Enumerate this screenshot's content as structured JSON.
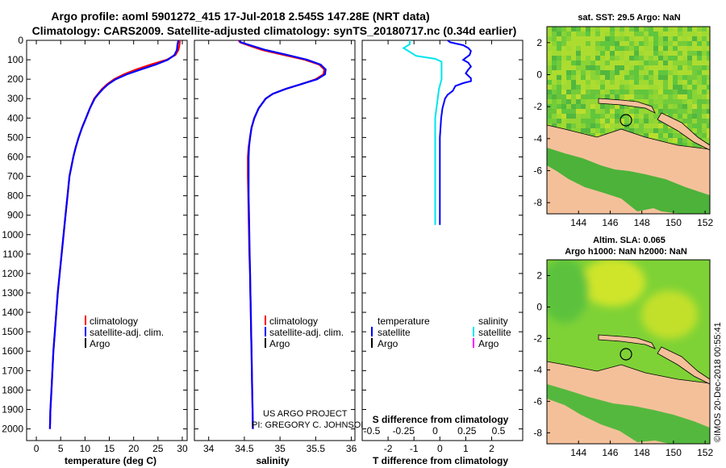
{
  "title": {
    "line1": "Argo profile: aoml 5901272_415 17-Jul-2018 2.545S 147.28E (NRT data)",
    "line2": "Climatology: CARS2009. Satellite-adjusted climatology: synTS_20180717.nc (0.34d earlier)"
  },
  "side_stamp": "©IMOS 20-Dec-2018 00:55:41",
  "colors": {
    "climatology": "#ff0000",
    "satellite": "#0000ff",
    "argo": "#000000",
    "s_satellite": "#00e5ee",
    "s_argo": "#ff00ff",
    "land": "#f4c09a"
  },
  "chart_data": [
    {
      "id": "temperature",
      "type": "line",
      "xlabel": "temperature (deg C)",
      "ylabel": "depth (m)",
      "xlim": [
        -2,
        31
      ],
      "ylim": [
        2060,
        0
      ],
      "xticks": [
        0,
        5,
        10,
        15,
        20,
        25,
        30
      ],
      "yticks": [
        0,
        100,
        200,
        300,
        400,
        500,
        600,
        700,
        800,
        900,
        1000,
        1100,
        1200,
        1300,
        1400,
        1500,
        1600,
        1700,
        1800,
        1900,
        2000
      ],
      "ytick_labels": [
        "0",
        "100",
        "200",
        "300",
        "400",
        "500",
        "600",
        "700",
        "800",
        "900",
        "1000",
        "1100",
        "1200",
        "1300",
        "1400",
        "1500",
        "1600",
        "1700",
        "1800",
        "1900",
        "2000"
      ],
      "legend": {
        "position": "lower-right",
        "entries": [
          "climatology",
          "satellite-adj. clim.",
          "Argo"
        ]
      },
      "series": [
        {
          "name": "climatology",
          "points": [
            [
              29.5,
              0
            ],
            [
              29.4,
              25
            ],
            [
              29.2,
              50
            ],
            [
              28.6,
              75
            ],
            [
              26.8,
              100
            ],
            [
              23.5,
              125
            ],
            [
              20.5,
              150
            ],
            [
              18.0,
              175
            ],
            [
              16.0,
              200
            ],
            [
              14.6,
              225
            ],
            [
              13.5,
              250
            ],
            [
              12.7,
              275
            ],
            [
              11.9,
              300
            ],
            [
              11.0,
              350
            ],
            [
              10.2,
              400
            ],
            [
              9.4,
              450
            ],
            [
              8.7,
              500
            ],
            [
              8.1,
              550
            ],
            [
              7.6,
              600
            ],
            [
              7.2,
              650
            ],
            [
              6.8,
              700
            ],
            [
              6.4,
              800
            ],
            [
              6.0,
              900
            ],
            [
              5.6,
              1000
            ],
            [
              5.2,
              1100
            ],
            [
              4.8,
              1200
            ],
            [
              4.4,
              1300
            ],
            [
              4.1,
              1400
            ],
            [
              3.8,
              1500
            ],
            [
              3.5,
              1600
            ],
            [
              3.3,
              1700
            ],
            [
              3.1,
              1800
            ],
            [
              2.9,
              1900
            ],
            [
              2.8,
              2000
            ]
          ]
        },
        {
          "name": "satellite-adj. clim.",
          "points": [
            [
              29.2,
              0
            ],
            [
              29.0,
              25
            ],
            [
              28.9,
              50
            ],
            [
              28.4,
              75
            ],
            [
              27.0,
              100
            ],
            [
              24.5,
              125
            ],
            [
              21.5,
              150
            ],
            [
              18.6,
              175
            ],
            [
              16.3,
              200
            ],
            [
              14.8,
              225
            ],
            [
              13.7,
              250
            ],
            [
              12.8,
              275
            ],
            [
              12.0,
              300
            ],
            [
              11.0,
              350
            ],
            [
              10.2,
              400
            ],
            [
              9.4,
              450
            ],
            [
              8.7,
              500
            ],
            [
              8.1,
              550
            ],
            [
              7.6,
              600
            ],
            [
              7.2,
              650
            ],
            [
              6.8,
              700
            ],
            [
              6.4,
              800
            ],
            [
              6.0,
              900
            ],
            [
              5.6,
              1000
            ],
            [
              5.2,
              1100
            ],
            [
              4.8,
              1200
            ],
            [
              4.4,
              1300
            ],
            [
              4.1,
              1400
            ],
            [
              3.8,
              1500
            ],
            [
              3.5,
              1600
            ],
            [
              3.3,
              1700
            ],
            [
              3.1,
              1800
            ],
            [
              2.9,
              1900
            ],
            [
              2.8,
              2000
            ]
          ]
        }
      ]
    },
    {
      "id": "salinity",
      "type": "line",
      "xlabel": "salinity",
      "xlim": [
        33.8,
        36.05
      ],
      "ylim": [
        2060,
        0
      ],
      "xticks": [
        34,
        34.5,
        35,
        35.5,
        36
      ],
      "xtick_labels": [
        "34",
        "34.5",
        "35",
        "35.5",
        "36"
      ],
      "legend": {
        "position": "lower-right",
        "entries": [
          "climatology",
          "satellite-adj. clim.",
          "Argo"
        ]
      },
      "series": [
        {
          "name": "climatology",
          "points": [
            [
              34.42,
              0
            ],
            [
              34.44,
              10
            ],
            [
              34.55,
              25
            ],
            [
              34.75,
              50
            ],
            [
              35.05,
              75
            ],
            [
              35.35,
              100
            ],
            [
              35.55,
              125
            ],
            [
              35.62,
              150
            ],
            [
              35.61,
              175
            ],
            [
              35.5,
              200
            ],
            [
              35.3,
              225
            ],
            [
              35.08,
              250
            ],
            [
              34.9,
              275
            ],
            [
              34.8,
              300
            ],
            [
              34.7,
              350
            ],
            [
              34.64,
              400
            ],
            [
              34.6,
              450
            ],
            [
              34.58,
              500
            ],
            [
              34.56,
              550
            ],
            [
              34.55,
              600
            ],
            [
              34.55,
              650
            ],
            [
              34.55,
              700
            ],
            [
              34.555,
              800
            ],
            [
              34.56,
              900
            ],
            [
              34.565,
              1000
            ],
            [
              34.57,
              1100
            ],
            [
              34.58,
              1200
            ],
            [
              34.585,
              1300
            ],
            [
              34.59,
              1400
            ],
            [
              34.595,
              1500
            ],
            [
              34.6,
              1600
            ],
            [
              34.605,
              1700
            ],
            [
              34.61,
              1800
            ],
            [
              34.615,
              1900
            ],
            [
              34.62,
              2000
            ]
          ]
        },
        {
          "name": "satellite-adj. clim.",
          "points": [
            [
              34.43,
              0
            ],
            [
              34.45,
              10
            ],
            [
              34.58,
              25
            ],
            [
              34.8,
              50
            ],
            [
              35.1,
              75
            ],
            [
              35.38,
              100
            ],
            [
              35.57,
              125
            ],
            [
              35.64,
              150
            ],
            [
              35.63,
              175
            ],
            [
              35.52,
              200
            ],
            [
              35.3,
              225
            ],
            [
              35.08,
              250
            ],
            [
              34.9,
              275
            ],
            [
              34.8,
              300
            ],
            [
              34.7,
              350
            ],
            [
              34.64,
              400
            ],
            [
              34.6,
              450
            ],
            [
              34.58,
              500
            ],
            [
              34.565,
              550
            ],
            [
              34.56,
              600
            ],
            [
              34.56,
              650
            ],
            [
              34.56,
              700
            ],
            [
              34.56,
              800
            ],
            [
              34.565,
              900
            ],
            [
              34.57,
              1000
            ],
            [
              34.575,
              1100
            ],
            [
              34.58,
              1200
            ],
            [
              34.585,
              1300
            ],
            [
              34.59,
              1400
            ],
            [
              34.595,
              1500
            ],
            [
              34.6,
              1600
            ],
            [
              34.605,
              1700
            ],
            [
              34.61,
              1800
            ],
            [
              34.615,
              1900
            ],
            [
              34.62,
              2000
            ]
          ]
        }
      ]
    },
    {
      "id": "difference",
      "type": "line",
      "xlabel": "T difference from climatology",
      "xlabel_top": "S difference from climatology",
      "xlim": [
        -3,
        3.2
      ],
      "ylim": [
        2060,
        0
      ],
      "xticks": [
        -2,
        -1,
        0,
        1,
        2
      ],
      "xtick_labels": [
        "-2",
        "-1",
        "0",
        "1",
        "2"
      ],
      "sticks": [
        -0.5,
        -0.25,
        0,
        0.25,
        0.5
      ],
      "stick_labels": [
        "-0.5",
        "-0.25",
        "0",
        "0.25",
        "0.5"
      ],
      "legend": {
        "position": "lower",
        "temperature_header": "temperature",
        "salinity_header": "salinity",
        "entries": [
          "satellite",
          "Argo"
        ]
      },
      "series": [
        {
          "name": "T satellite",
          "points": [
            [
              0.3,
              0
            ],
            [
              0.4,
              10
            ],
            [
              0.9,
              25
            ],
            [
              1.1,
              40
            ],
            [
              1.2,
              55
            ],
            [
              1.15,
              75
            ],
            [
              1.0,
              90
            ],
            [
              0.9,
              100
            ],
            [
              1.1,
              115
            ],
            [
              1.2,
              135
            ],
            [
              1.1,
              150
            ],
            [
              1.0,
              170
            ],
            [
              1.2,
              195
            ],
            [
              1.2,
              210
            ],
            [
              0.9,
              220
            ],
            [
              0.6,
              235
            ],
            [
              0.5,
              260
            ],
            [
              0.3,
              280
            ],
            [
              0.2,
              300
            ],
            [
              0.1,
              350
            ],
            [
              0.05,
              400
            ],
            [
              0.0,
              500
            ],
            [
              0.0,
              600
            ],
            [
              0.0,
              700
            ],
            [
              0.0,
              800
            ],
            [
              0.0,
              900
            ],
            [
              0.0,
              950
            ]
          ]
        },
        {
          "name": "S satellite",
          "points": [
            [
              -0.2,
              0
            ],
            [
              -0.2,
              20
            ],
            [
              -0.25,
              40
            ],
            [
              -0.2,
              60
            ],
            [
              -0.15,
              80
            ],
            [
              0.0,
              95
            ],
            [
              0.05,
              110
            ],
            [
              0.05,
              150
            ],
            [
              0.05,
              200
            ],
            [
              0.03,
              250
            ],
            [
              0.02,
              300
            ],
            [
              0.0,
              400
            ],
            [
              0.0,
              500
            ],
            [
              0.0,
              600
            ],
            [
              0.0,
              700
            ],
            [
              0.0,
              800
            ],
            [
              0.0,
              900
            ],
            [
              0.0,
              950
            ]
          ]
        }
      ]
    },
    {
      "id": "sst-map",
      "type": "heatmap",
      "title": "sat. SST: 29.5 Argo: NaN",
      "xlim": [
        142.0,
        152.3
      ],
      "ylim": [
        -8.7,
        3.0
      ],
      "xticks": [
        144,
        146,
        148,
        150,
        152
      ],
      "yticks": [
        2,
        0,
        -2,
        -4,
        -6,
        -8
      ],
      "argo_position": {
        "lon": 147.28,
        "lat": -2.545
      }
    },
    {
      "id": "sla-map",
      "type": "heatmap",
      "title": "Altim. SLA: 0.065",
      "subtitle": "Argo h1000: NaN h2000: NaN",
      "xlim": [
        142.0,
        152.3
      ],
      "ylim": [
        -8.7,
        3.0
      ],
      "xticks": [
        144,
        146,
        148,
        150,
        152
      ],
      "yticks": [
        2,
        0,
        -2,
        -4,
        -6,
        -8
      ],
      "argo_position": {
        "lon": 147.28,
        "lat": -2.545
      }
    }
  ],
  "credits": {
    "line1": "US ARGO PROJECT",
    "line2": "PI: GREGORY C. JOHNSON"
  }
}
